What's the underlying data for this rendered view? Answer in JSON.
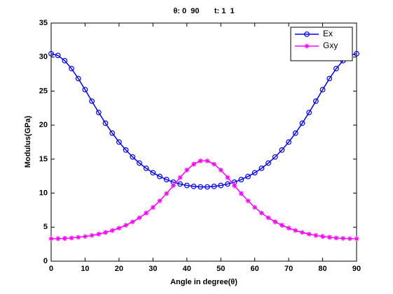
{
  "chart_data": {
    "type": "line",
    "title": "θ: 0  90       t: 1  1",
    "x_label": "Angle in degree(θ)",
    "y_label": "Modulus(GPa)",
    "x": [
      0,
      2,
      4,
      6,
      8,
      10,
      12,
      14,
      16,
      18,
      20,
      22,
      24,
      26,
      28,
      30,
      32,
      34,
      36,
      38,
      40,
      42,
      44,
      46,
      48,
      50,
      52,
      54,
      56,
      58,
      60,
      62,
      64,
      66,
      68,
      70,
      72,
      74,
      76,
      78,
      80,
      82,
      84,
      86,
      88,
      90
    ],
    "series": [
      {
        "name": "Ex",
        "color": "#0000ff",
        "marker": "circle",
        "values": [
          30.5,
          30.24,
          29.47,
          28.3,
          26.84,
          25.21,
          23.52,
          21.85,
          20.28,
          18.82,
          17.51,
          16.34,
          15.32,
          14.42,
          13.65,
          13.0,
          12.45,
          11.99,
          11.62,
          11.34,
          11.13,
          10.99,
          10.92,
          10.92,
          10.99,
          11.13,
          11.34,
          11.62,
          11.99,
          12.45,
          13.0,
          13.65,
          14.42,
          15.32,
          16.34,
          17.51,
          18.82,
          20.28,
          21.85,
          23.52,
          25.21,
          26.84,
          28.3,
          29.47,
          30.24,
          30.5
        ]
      },
      {
        "name": "Gxy",
        "color": "#ff00ff",
        "marker": "star",
        "values": [
          3.3,
          3.31,
          3.35,
          3.41,
          3.51,
          3.63,
          3.79,
          3.98,
          4.22,
          4.51,
          4.86,
          5.28,
          5.78,
          6.38,
          7.08,
          7.91,
          8.87,
          9.94,
          11.11,
          12.3,
          13.4,
          14.26,
          14.74,
          14.74,
          14.26,
          13.4,
          12.3,
          11.11,
          9.94,
          8.87,
          7.91,
          7.08,
          6.38,
          5.78,
          5.28,
          4.86,
          4.51,
          4.22,
          3.98,
          3.79,
          3.63,
          3.51,
          3.41,
          3.35,
          3.31,
          3.3
        ]
      }
    ],
    "xlim": [
      0,
      90
    ],
    "xticks": [
      0,
      10,
      20,
      30,
      40,
      50,
      60,
      70,
      80,
      90
    ],
    "ylim": [
      0,
      35
    ],
    "yticks": [
      0,
      5,
      10,
      15,
      20,
      25,
      30,
      35
    ],
    "grid": false,
    "legend": "top-right"
  }
}
